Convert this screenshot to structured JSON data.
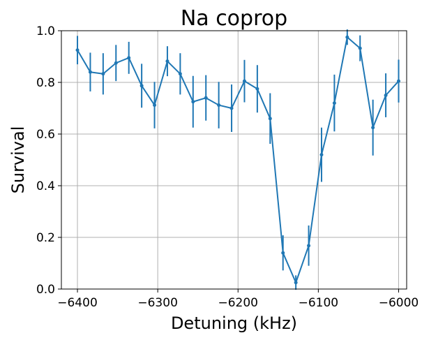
{
  "chart_data": {
    "type": "line",
    "title": "Na coprop",
    "xlabel": "Detuning (kHz)",
    "ylabel": "Survival",
    "xlim": [
      -6420,
      -5990
    ],
    "ylim": [
      0.0,
      1.0
    ],
    "xticks": [
      -6400,
      -6300,
      -6200,
      -6100,
      -6000
    ],
    "xtick_labels": [
      "−6400",
      "−6300",
      "−6200",
      "−6100",
      "−6000"
    ],
    "yticks": [
      0.0,
      0.2,
      0.4,
      0.6,
      0.8,
      1.0
    ],
    "ytick_labels": [
      "0.0",
      "0.2",
      "0.4",
      "0.6",
      "0.8",
      "1.0"
    ],
    "grid": true,
    "legend": "none",
    "colors": {
      "series": "#1f77b4",
      "grid": "#b0b0b0"
    },
    "series": [
      {
        "x": [
          -6400,
          -6384,
          -6368,
          -6352,
          -6336,
          -6320,
          -6304,
          -6288,
          -6272,
          -6256,
          -6240,
          -6224,
          -6208,
          -6192,
          -6176,
          -6160,
          -6144,
          -6128,
          -6112,
          -6096,
          -6080,
          -6064,
          -6048,
          -6032,
          -6016,
          -6000
        ],
        "y": [
          0.925,
          0.84,
          0.833,
          0.875,
          0.895,
          0.787,
          0.712,
          0.882,
          0.833,
          0.725,
          0.74,
          0.712,
          0.7,
          0.805,
          0.775,
          0.66,
          0.14,
          0.025,
          0.168,
          0.52,
          0.72,
          0.975,
          0.932,
          0.625,
          0.75,
          0.805
        ],
        "yerr": [
          0.055,
          0.075,
          0.08,
          0.07,
          0.062,
          0.085,
          0.09,
          0.058,
          0.08,
          0.1,
          0.088,
          0.09,
          0.092,
          0.082,
          0.092,
          0.098,
          0.068,
          0.028,
          0.078,
          0.105,
          0.11,
          0.03,
          0.05,
          0.108,
          0.085,
          0.083
        ]
      }
    ]
  }
}
